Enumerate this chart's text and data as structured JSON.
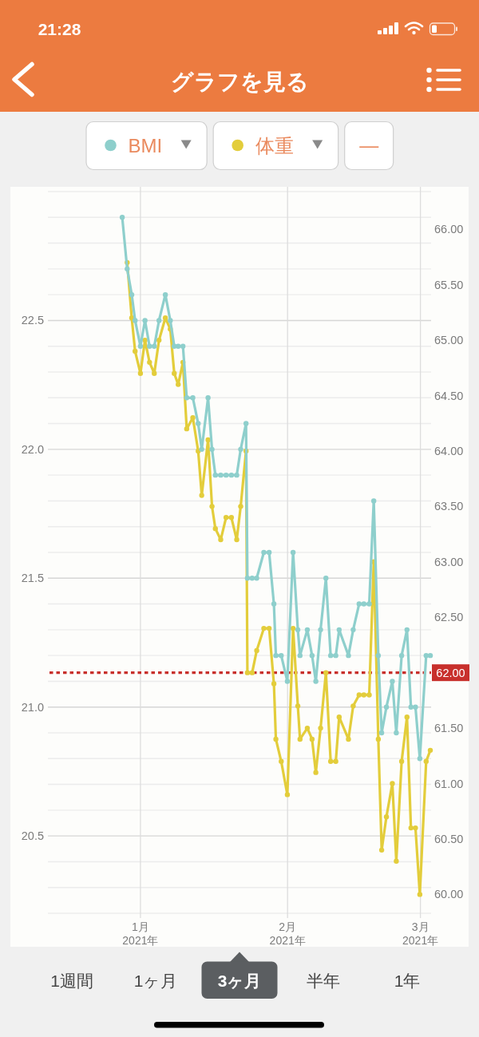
{
  "chart_data": {
    "type": "line",
    "title": "グラフを見る",
    "x": [
      "2020-12-28T04:00",
      "2020-12-29T05:00",
      "2020-12-30T04:00",
      "2020-12-30T21:00",
      "2021-01-01T00:00",
      "2021-01-01T23:00",
      "2021-01-02T22:00",
      "2021-01-03T22:00",
      "2021-01-04T22:00",
      "2021-01-06T06:00",
      "2021-01-07T07:00",
      "2021-01-08T03:00",
      "2021-01-08T23:00",
      "2021-01-09T23:00",
      "2021-01-10T18:00",
      "2021-01-12T01:00",
      "2021-01-13T04:00",
      "2021-01-13T22:00",
      "2021-01-15T06:00",
      "2021-01-16T02:00",
      "2021-01-16T19:00",
      "2021-01-17T22:00",
      "2021-01-19T01:00",
      "2021-01-20T04:00",
      "2021-01-21T07:00",
      "2021-01-22T03:00",
      "2021-01-23T06:00",
      "2021-01-23T13:00",
      "2021-01-24T13:00",
      "2021-01-25T12:00",
      "2021-01-27T00:00",
      "2021-01-28T03:00",
      "2021-01-29T03:00",
      "2021-01-29T13:00",
      "2021-01-30T16:00",
      "2021-01-31T23:00",
      "2021-02-02T04:00",
      "2021-02-03T04:00",
      "2021-02-03T15:00",
      "2021-02-05T04:00",
      "2021-02-06T04:00",
      "2021-02-06T23:00",
      "2021-02-07T23:00",
      "2021-02-09T02:00",
      "2021-02-10T02:00",
      "2021-02-11T04:00",
      "2021-02-11T21:00",
      "2021-02-13T20:00",
      "2021-02-14T20:00",
      "2021-02-16T02:00",
      "2021-02-17T02:00",
      "2021-02-18T05:00",
      "2021-02-19T04:00",
      "2021-02-20T03:00",
      "2021-02-20T20:00",
      "2021-02-21T20:00",
      "2021-02-23T02:00",
      "2021-02-23T22:00",
      "2021-02-25T01:00",
      "2021-02-26T04:00",
      "2021-02-27T00:00",
      "2021-02-27T23:00",
      "2021-02-28T21:00",
      "2021-03-02T05:00",
      "2021-03-03T02:00"
    ],
    "series": [
      {
        "name": "BMI",
        "color": "#8ecfcc",
        "values": [
          22.9,
          22.7,
          22.6,
          22.5,
          22.4,
          22.5,
          22.4,
          22.4,
          22.5,
          22.6,
          22.5,
          22.4,
          22.4,
          22.4,
          22.2,
          22.2,
          22.1,
          22.0,
          22.2,
          22.0,
          21.9,
          21.9,
          21.9,
          21.9,
          21.9,
          22.0,
          22.1,
          21.5,
          21.5,
          21.5,
          21.6,
          21.6,
          21.4,
          21.2,
          21.2,
          21.1,
          21.6,
          21.3,
          21.2,
          21.3,
          21.2,
          21.1,
          21.3,
          21.5,
          21.2,
          21.2,
          21.3,
          21.2,
          21.3,
          21.4,
          21.4,
          21.4,
          21.8,
          21.2,
          20.9,
          21.0,
          21.1,
          20.9,
          21.2,
          21.3,
          21.0,
          21.0,
          20.8,
          21.2,
          21.2
        ]
      },
      {
        "name": "体重",
        "color": "#e3cd3b",
        "axis": "y2",
        "values": [
          null,
          65.7,
          65.2,
          64.9,
          64.7,
          65.0,
          64.8,
          64.7,
          65.0,
          65.2,
          65.1,
          64.7,
          64.6,
          64.8,
          64.2,
          64.3,
          64.0,
          63.6,
          64.1,
          63.5,
          63.3,
          63.2,
          63.4,
          63.4,
          63.2,
          63.5,
          64.0,
          62.0,
          62.0,
          62.2,
          62.4,
          62.4,
          61.9,
          61.4,
          61.2,
          60.9,
          62.4,
          61.7,
          61.4,
          61.5,
          61.4,
          61.1,
          61.5,
          62.0,
          61.2,
          61.2,
          61.6,
          61.4,
          61.7,
          61.8,
          61.8,
          61.8,
          63.0,
          61.4,
          60.4,
          60.7,
          61.0,
          60.3,
          61.2,
          61.6,
          60.6,
          60.6,
          60.0,
          61.2,
          61.3
        ]
      }
    ],
    "xlim": [
      "2020-12-12T12:00",
      "2021-03-03T06:00"
    ],
    "xticks": [
      {
        "value": "2021-01-01",
        "label": "1月 2021年"
      },
      {
        "value": "2021-02-01",
        "label": "2月 2021年"
      },
      {
        "value": "2021-03-01",
        "label": "3月 2021年"
      }
    ],
    "ylim": [
      20.2,
      23.0
    ],
    "yticks": [
      {
        "value": 20.2,
        "label": null
      },
      {
        "value": 20.3,
        "label": null
      },
      {
        "value": 20.4,
        "label": null
      },
      {
        "value": 20.5,
        "label": "20.5"
      },
      {
        "value": 20.6,
        "label": null
      },
      {
        "value": 20.7,
        "label": null
      },
      {
        "value": 20.8,
        "label": null
      },
      {
        "value": 20.9,
        "label": null
      },
      {
        "value": 21.0,
        "label": "21.0"
      },
      {
        "value": 21.1,
        "label": null
      },
      {
        "value": 21.2,
        "label": null
      },
      {
        "value": 21.3,
        "label": null
      },
      {
        "value": 21.4,
        "label": null
      },
      {
        "value": 21.5,
        "label": "21.5"
      },
      {
        "value": 21.6,
        "label": null
      },
      {
        "value": 21.7,
        "label": null
      },
      {
        "value": 21.8,
        "label": null
      },
      {
        "value": 21.9,
        "label": null
      },
      {
        "value": 22.0,
        "label": "22.0"
      },
      {
        "value": 22.1,
        "label": null
      },
      {
        "value": 22.2,
        "label": null
      },
      {
        "value": 22.3,
        "label": null
      },
      {
        "value": 22.4,
        "label": null
      },
      {
        "value": 22.5,
        "label": "22.5"
      },
      {
        "value": 22.6,
        "label": null
      },
      {
        "value": 22.7,
        "label": null
      },
      {
        "value": 22.8,
        "label": null
      },
      {
        "value": 22.9,
        "label": null
      },
      {
        "value": 23.0,
        "label": null
      }
    ],
    "y2lim": [
      59.83,
      66.34
    ],
    "y2ticks": [
      {
        "value": 60,
        "label": "60.00"
      },
      {
        "value": 60.5,
        "label": "60.50"
      },
      {
        "value": 61,
        "label": "61.00"
      },
      {
        "value": 61.5,
        "label": "61.50"
      },
      {
        "value": 62.5,
        "label": "62.50"
      },
      {
        "value": 63,
        "label": "63.00"
      },
      {
        "value": 63.5,
        "label": "63.50"
      },
      {
        "value": 64,
        "label": "64.00"
      },
      {
        "value": 64.5,
        "label": "64.50"
      },
      {
        "value": 65,
        "label": "65.00"
      },
      {
        "value": 65.5,
        "label": "65.50"
      },
      {
        "value": 66,
        "label": "66.00"
      }
    ],
    "ref_lines": [
      {
        "axis": "y2",
        "value": 62,
        "label": "62.00",
        "color": "#c8302c",
        "line_style": "dotted"
      }
    ],
    "grid": true,
    "legend": "top",
    "marker": "circle",
    "line_style": "solid",
    "annotations": [
      "21:28",
      "—",
      "1週間",
      "1ヶ月",
      "3ヶ月",
      "半年",
      "1年"
    ]
  }
}
